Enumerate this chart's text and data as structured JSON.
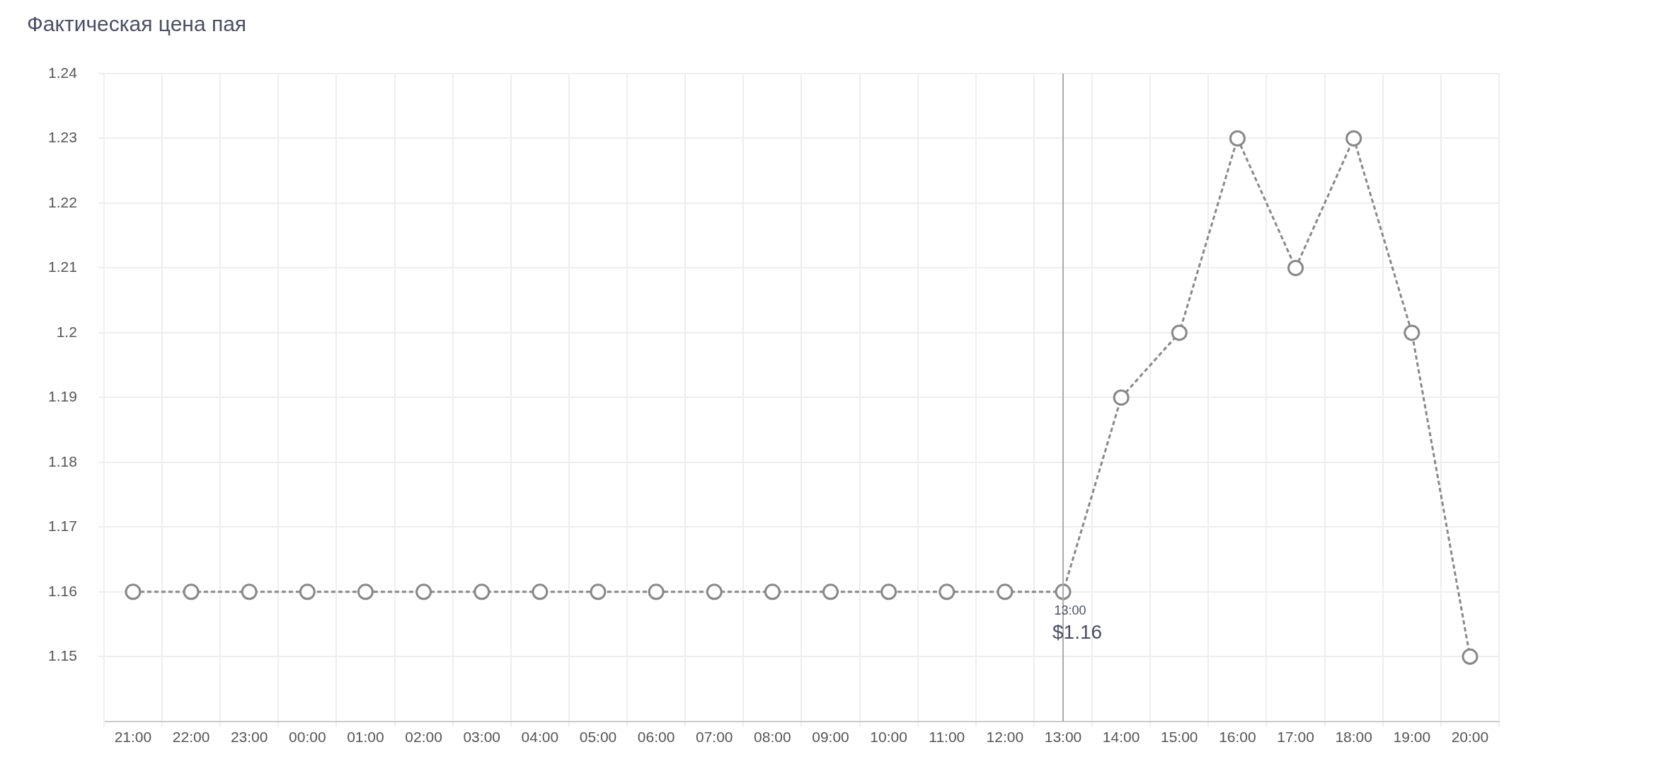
{
  "chart_data": {
    "type": "line",
    "title": "Фактическая цена пая",
    "categories": [
      "21:00",
      "22:00",
      "23:00",
      "00:00",
      "01:00",
      "02:00",
      "03:00",
      "04:00",
      "05:00",
      "06:00",
      "07:00",
      "08:00",
      "09:00",
      "10:00",
      "11:00",
      "12:00",
      "13:00",
      "14:00",
      "15:00",
      "16:00",
      "17:00",
      "18:00",
      "19:00",
      "20:00"
    ],
    "series": [
      {
        "color": "#888888",
        "values": [
          1.16,
          1.16,
          1.16,
          1.16,
          1.16,
          1.16,
          1.16,
          1.16,
          1.16,
          1.16,
          1.16,
          1.16,
          1.16,
          1.16,
          1.16,
          1.16,
          1.16,
          1.19,
          1.2,
          1.23,
          1.21,
          1.23,
          1.2,
          1.15
        ]
      }
    ],
    "ylim": [
      1.14,
      1.24
    ],
    "yticks": [
      1.15,
      1.16,
      1.17,
      1.18,
      1.19,
      1.2,
      1.21,
      1.22,
      1.23,
      1.24
    ],
    "grid": true,
    "legend": false,
    "marker": "circle",
    "line_style": "dashed",
    "ref_lines": [
      {
        "axis": "x",
        "value": "13:00",
        "color": "#aaaaaa"
      }
    ],
    "annotations": [
      {
        "text": "13:00",
        "x": "13:00",
        "y": 1.16
      },
      {
        "text": "$1.16",
        "x": "13:00",
        "y": 1.16
      }
    ]
  }
}
